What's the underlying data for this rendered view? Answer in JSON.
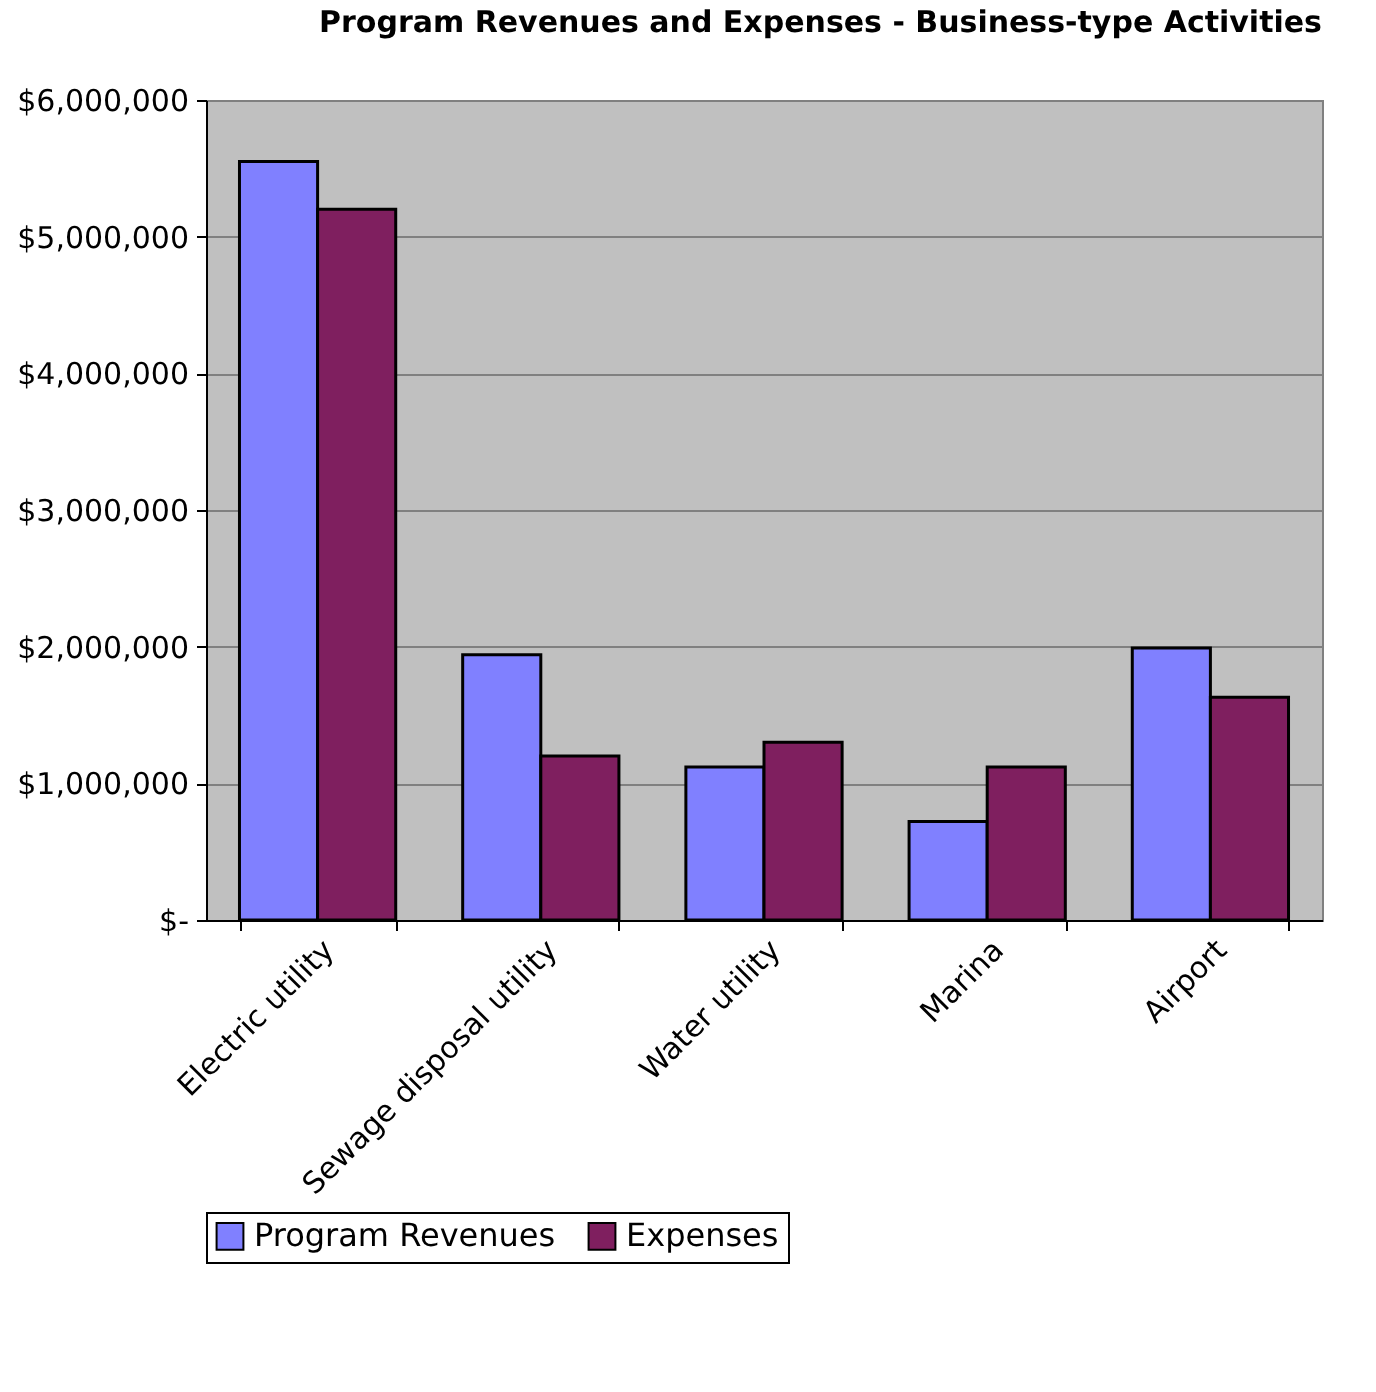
{
  "chart_data": {
    "type": "bar",
    "title": "Program Revenues and Expenses - Business-type Activities",
    "categories": [
      "Electric utility",
      "Sewage disposal utility",
      "Water utility",
      "Marina",
      "Airport"
    ],
    "series": [
      {
        "name": "Program Revenues",
        "color": "#8080ff",
        "values": [
          5550000,
          1940000,
          1120000,
          720000,
          1990000
        ]
      },
      {
        "name": "Expenses",
        "color": "#7f1f5f",
        "values": [
          5200000,
          1200000,
          1300000,
          1120000,
          1630000
        ]
      }
    ],
    "ylim": [
      0,
      6000000
    ],
    "yticks": [
      {
        "value": 0,
        "label": "$-"
      },
      {
        "value": 1000000,
        "label": "$1,000,000"
      },
      {
        "value": 2000000,
        "label": "$2,000,000"
      },
      {
        "value": 3000000,
        "label": "$3,000,000"
      },
      {
        "value": 4000000,
        "label": "$4,000,000"
      },
      {
        "value": 5000000,
        "label": "$5,000,000"
      },
      {
        "value": 6000000,
        "label": "$6,000,000"
      }
    ],
    "grid": "y",
    "legend": "bottom"
  }
}
